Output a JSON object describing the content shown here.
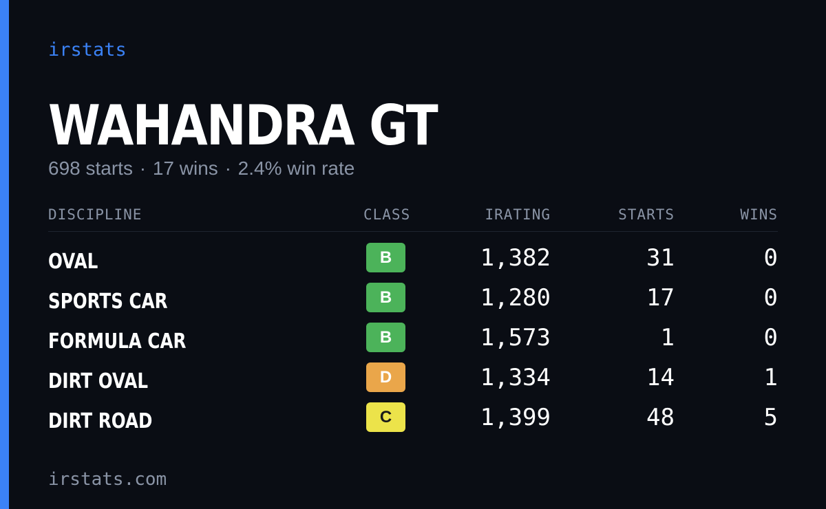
{
  "brand": "irstats",
  "driver": {
    "name": "WAHANDRA GT"
  },
  "summary": {
    "starts": "698 starts",
    "wins": "17 wins",
    "win_rate": "2.4% win rate",
    "separator": "·"
  },
  "table": {
    "headers": {
      "discipline": "DISCIPLINE",
      "class": "CLASS",
      "irating": "IRATING",
      "starts": "STARTS",
      "wins": "WINS"
    },
    "rows": [
      {
        "discipline": "OVAL",
        "class": "B",
        "class_color": "#4cb35a",
        "class_text_color": "#ffffff",
        "irating": "1,382",
        "starts": "31",
        "wins": "0"
      },
      {
        "discipline": "SPORTS CAR",
        "class": "B",
        "class_color": "#4cb35a",
        "class_text_color": "#ffffff",
        "irating": "1,280",
        "starts": "17",
        "wins": "0"
      },
      {
        "discipline": "FORMULA CAR",
        "class": "B",
        "class_color": "#4cb35a",
        "class_text_color": "#ffffff",
        "irating": "1,573",
        "starts": "1",
        "wins": "0"
      },
      {
        "discipline": "DIRT OVAL",
        "class": "D",
        "class_color": "#eaa64a",
        "class_text_color": "#ffffff",
        "irating": "1,334",
        "starts": "14",
        "wins": "1"
      },
      {
        "discipline": "DIRT ROAD",
        "class": "C",
        "class_color": "#ece34a",
        "class_text_color": "#1a1a1a",
        "irating": "1,399",
        "starts": "48",
        "wins": "5"
      }
    ]
  },
  "footer": {
    "domain": "irstats.com"
  },
  "colors": {
    "accent": "#3b82f6",
    "background": "#0a0d14",
    "muted_text": "#8a94a6"
  }
}
